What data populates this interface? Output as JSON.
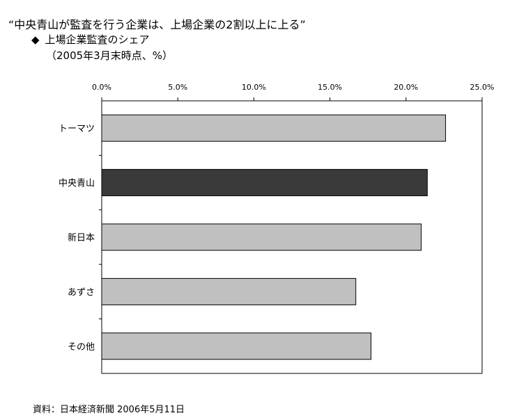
{
  "header": {
    "title": "“中央青山が監査を行う企業は、上場企業の2割以上に上る”",
    "subtitle_marker": "◆",
    "subtitle": "上場企業監査のシェア",
    "note": "（2005年3月末時点、%）"
  },
  "footer": {
    "source": "資料：日本経済新聞 2006年5月11日"
  },
  "colors": {
    "bar": "#c0c0c0",
    "highlight_bar": "#3a3a3a",
    "bar_stroke": "#000000"
  },
  "chart_data": {
    "type": "bar",
    "orientation": "horizontal",
    "x_axis_position": "top",
    "categories": [
      "トーマツ",
      "中央青山",
      "新日本",
      "あずさ",
      "その他"
    ],
    "values": [
      22.6,
      21.4,
      21.0,
      16.7,
      17.7
    ],
    "highlight": "中央青山",
    "xlim": [
      0,
      25
    ],
    "ticks": [
      0,
      5,
      10,
      15,
      20,
      25
    ],
    "tick_labels": [
      "0.0%",
      "5.0%",
      "10.0%",
      "15.0%",
      "20.0%",
      "25.0%"
    ],
    "grid": false
  }
}
